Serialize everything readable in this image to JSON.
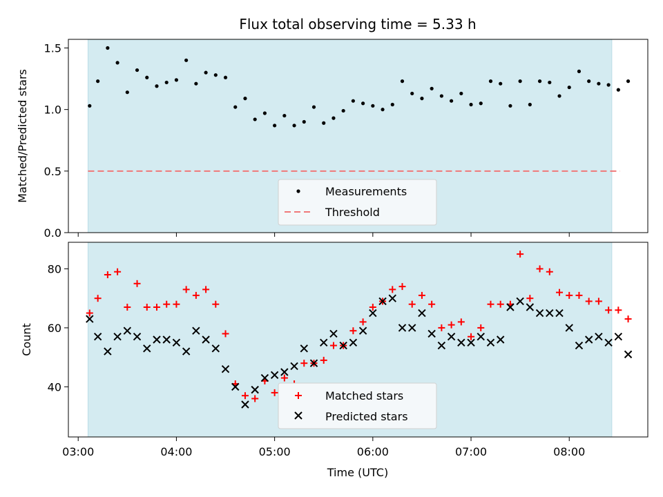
{
  "chart_data": [
    {
      "type": "scatter",
      "title": "Flux total observing time = 5.33 h",
      "xlabel": "",
      "ylabel": "Matched/Predicted stars",
      "xlim": [
        "02:54",
        "08:48"
      ],
      "ylim": [
        0,
        1.57
      ],
      "yticks": [
        "0.0",
        "0.5",
        "1.0",
        "1.5"
      ],
      "shaded_span": [
        "03:06",
        "08:26"
      ],
      "shade_color": "#d4ebf1",
      "threshold": 0.5,
      "threshold_color": "#f07878",
      "legend": {
        "placement": "bottom-center",
        "entries": [
          "Measurements",
          "Threshold"
        ]
      },
      "series": [
        {
          "name": "Measurements",
          "color": "#000000",
          "x": [
            "03:07",
            "03:12",
            "03:18",
            "03:24",
            "03:30",
            "03:36",
            "03:42",
            "03:48",
            "03:54",
            "04:00",
            "04:06",
            "04:12",
            "04:18",
            "04:24",
            "04:30",
            "04:36",
            "04:42",
            "04:48",
            "04:54",
            "05:00",
            "05:06",
            "05:12",
            "05:18",
            "05:24",
            "05:30",
            "05:36",
            "05:42",
            "05:48",
            "05:54",
            "06:00",
            "06:06",
            "06:12",
            "06:18",
            "06:24",
            "06:30",
            "06:36",
            "06:42",
            "06:48",
            "06:54",
            "07:00",
            "07:06",
            "07:12",
            "07:18",
            "07:24",
            "07:30",
            "07:36",
            "07:42",
            "07:48",
            "07:54",
            "08:00",
            "08:06",
            "08:12",
            "08:18",
            "08:24",
            "08:30",
            "08:36"
          ],
          "y": [
            1.03,
            1.23,
            1.5,
            1.38,
            1.14,
            1.32,
            1.26,
            1.19,
            1.22,
            1.24,
            1.4,
            1.21,
            1.3,
            1.28,
            1.26,
            1.02,
            1.09,
            0.92,
            0.97,
            0.87,
            0.95,
            0.87,
            0.9,
            1.02,
            0.89,
            0.93,
            0.99,
            1.07,
            1.05,
            1.03,
            1.0,
            1.04,
            1.23,
            1.13,
            1.09,
            1.17,
            1.11,
            1.07,
            1.13,
            1.04,
            1.05,
            1.23,
            1.21,
            1.03,
            1.23,
            1.04,
            1.23,
            1.22,
            1.11,
            1.18,
            1.31,
            1.23,
            1.21,
            1.2,
            1.16,
            1.23
          ]
        }
      ]
    },
    {
      "type": "scatter",
      "title": "",
      "xlabel": "Time (UTC)",
      "ylabel": "Count",
      "xlim": [
        "02:54",
        "08:48"
      ],
      "xticks": [
        "03:00",
        "04:00",
        "05:00",
        "06:00",
        "07:00",
        "08:00"
      ],
      "ylim": [
        23,
        89
      ],
      "yticks": [
        "40",
        "60",
        "80"
      ],
      "shaded_span": [
        "03:06",
        "08:26"
      ],
      "legend": {
        "placement": "bottom-center",
        "entries": [
          "Matched stars",
          "Predicted stars"
        ]
      },
      "series": [
        {
          "name": "Matched stars",
          "marker": "plus",
          "color": "#ff0000",
          "x": [
            "03:07",
            "03:12",
            "03:18",
            "03:24",
            "03:30",
            "03:36",
            "03:42",
            "03:48",
            "03:54",
            "04:00",
            "04:06",
            "04:12",
            "04:18",
            "04:24",
            "04:30",
            "04:36",
            "04:42",
            "04:48",
            "04:54",
            "05:00",
            "05:06",
            "05:12",
            "05:18",
            "05:24",
            "05:30",
            "05:36",
            "05:42",
            "05:48",
            "05:54",
            "06:00",
            "06:06",
            "06:12",
            "06:18",
            "06:24",
            "06:30",
            "06:36",
            "06:42",
            "06:48",
            "06:54",
            "07:00",
            "07:06",
            "07:12",
            "07:18",
            "07:24",
            "07:30",
            "07:36",
            "07:42",
            "07:48",
            "07:54",
            "08:00",
            "08:06",
            "08:12",
            "08:18",
            "08:24",
            "08:30",
            "08:36"
          ],
          "y": [
            65,
            70,
            78,
            79,
            67,
            75,
            67,
            67,
            68,
            68,
            73,
            71,
            73,
            68,
            58,
            41,
            37,
            36,
            42,
            38,
            43,
            41,
            48,
            48,
            49,
            54,
            54,
            59,
            62,
            67,
            69,
            73,
            74,
            68,
            71,
            68,
            60,
            61,
            62,
            57,
            60,
            68,
            68,
            68,
            85,
            70,
            80,
            79,
            72,
            71,
            71,
            69,
            69,
            66,
            66,
            63
          ]
        },
        {
          "name": "Predicted stars",
          "marker": "x",
          "color": "#000000",
          "x": [
            "03:07",
            "03:12",
            "03:18",
            "03:24",
            "03:30",
            "03:36",
            "03:42",
            "03:48",
            "03:54",
            "04:00",
            "04:06",
            "04:12",
            "04:18",
            "04:24",
            "04:30",
            "04:36",
            "04:42",
            "04:48",
            "04:54",
            "05:00",
            "05:06",
            "05:12",
            "05:18",
            "05:24",
            "05:30",
            "05:36",
            "05:42",
            "05:48",
            "05:54",
            "06:00",
            "06:06",
            "06:12",
            "06:18",
            "06:24",
            "06:30",
            "06:36",
            "06:42",
            "06:48",
            "06:54",
            "07:00",
            "07:06",
            "07:12",
            "07:18",
            "07:24",
            "07:30",
            "07:36",
            "07:42",
            "07:48",
            "07:54",
            "08:00",
            "08:06",
            "08:12",
            "08:18",
            "08:24",
            "08:30",
            "08:36"
          ],
          "y": [
            63,
            57,
            52,
            57,
            59,
            57,
            53,
            56,
            56,
            55,
            52,
            59,
            56,
            53,
            46,
            40,
            34,
            39,
            43,
            44,
            45,
            47,
            53,
            48,
            55,
            58,
            54,
            55,
            59,
            65,
            69,
            70,
            60,
            60,
            65,
            58,
            54,
            57,
            55,
            55,
            57,
            55,
            56,
            67,
            69,
            67,
            65,
            65,
            65,
            60,
            54,
            56,
            57,
            55,
            57,
            51
          ]
        }
      ]
    }
  ]
}
